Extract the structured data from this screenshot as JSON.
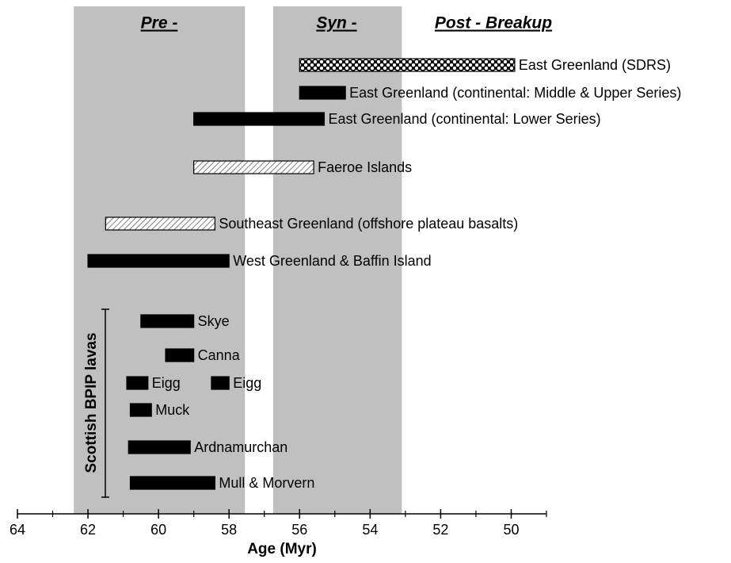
{
  "chart_data": {
    "type": "range-bar",
    "xlabel": "Age (Myr)",
    "xlim": [
      64,
      49
    ],
    "xticks": [
      64,
      62,
      60,
      58,
      56,
      54,
      52,
      50
    ],
    "xminorticks": [
      63,
      61,
      59,
      57,
      55,
      53,
      51,
      49
    ],
    "bands": [
      {
        "start": 62.4,
        "end": 57.55,
        "color": "#c0c0c0"
      },
      {
        "start": 56.75,
        "end": 53.1,
        "color": "#c0c0c0"
      }
    ],
    "phase_labels": [
      "Pre -",
      "Syn -",
      "Post - Breakup"
    ],
    "group_label": "Scottish BPIP lavas",
    "bars": [
      {
        "label": "East Greenland (SDRS)",
        "start": 56.0,
        "end": 49.9,
        "fill": "dotted"
      },
      {
        "label": "East Greenland (continental: Middle & Upper Series)",
        "start": 56.0,
        "end": 54.7,
        "fill": "solid"
      },
      {
        "label": "East Greenland (continental: Lower Series)",
        "start": 59.0,
        "end": 55.3,
        "fill": "solid"
      },
      {
        "label": "Faeroe Islands",
        "start": 59.0,
        "end": 55.6,
        "fill": "hatched"
      },
      {
        "label": "Southeast Greenland (offshore plateau basalts)",
        "start": 61.5,
        "end": 58.4,
        "fill": "hatched"
      },
      {
        "label": "West Greenland & Baffin Island",
        "start": 62.0,
        "end": 58.0,
        "fill": "solid"
      },
      {
        "label": "Skye",
        "start": 60.5,
        "end": 59.0,
        "fill": "solid"
      },
      {
        "label": "Canna",
        "start": 59.8,
        "end": 59.0,
        "fill": "solid"
      },
      {
        "label": "Eigg",
        "start": 60.9,
        "end": 60.3,
        "fill": "solid"
      },
      {
        "label": "Eigg",
        "start": 58.5,
        "end": 58.0,
        "fill": "solid"
      },
      {
        "label": "Muck",
        "start": 60.8,
        "end": 60.2,
        "fill": "solid"
      },
      {
        "label": "Ardnamurchan",
        "start": 60.85,
        "end": 59.1,
        "fill": "solid"
      },
      {
        "label": "Mull & Morvern",
        "start": 60.8,
        "end": 58.4,
        "fill": "solid"
      }
    ]
  }
}
